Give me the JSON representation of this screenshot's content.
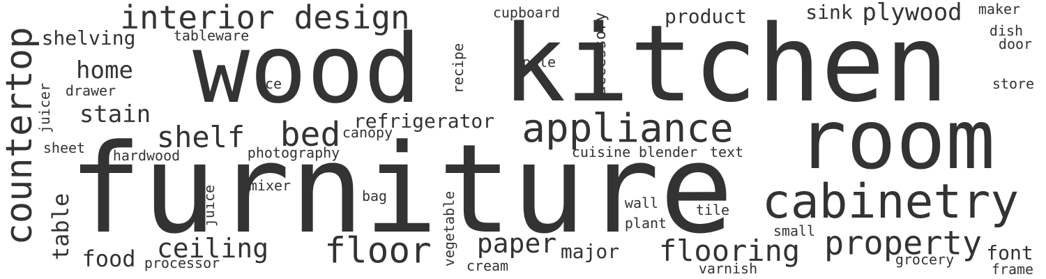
{
  "colors": {
    "background": "#ffffff",
    "text": "#333333"
  },
  "words": [
    "furniture",
    "wood",
    "kitchen",
    "room",
    "countertop",
    "cabinetry",
    "appliance",
    "interior design",
    "property",
    "flooring",
    "floor",
    "bed",
    "shelf",
    "ceiling",
    "paper",
    "plywood",
    "home",
    "stain",
    "refrigerator",
    "food",
    "shelving",
    "table",
    "product",
    "major",
    "font",
    "sink",
    "accessory",
    "juice",
    "juicer",
    "recipe",
    "vegetable",
    "tableware",
    "cupboard",
    "maker",
    "dish",
    "door",
    "store",
    "apple",
    "ice",
    "drawer",
    "canopy",
    "photography",
    "hardwood",
    "sheet",
    "cuisine",
    "blender",
    "text",
    "mixer",
    "bag",
    "wall",
    "plant",
    "tile",
    "small",
    "grocery",
    "cream",
    "processor",
    "varnish",
    "frame"
  ]
}
